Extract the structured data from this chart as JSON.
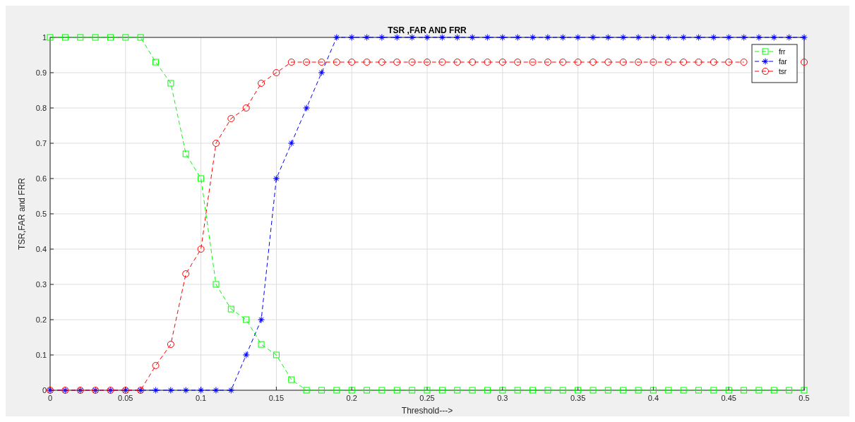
{
  "chart_data": {
    "type": "line",
    "title": "TSR ,FAR AND FRR",
    "xlabel": "Threshold--->",
    "ylabel": "TSR,FAR and FRR",
    "x": [
      0,
      0.01,
      0.02,
      0.03,
      0.04,
      0.05,
      0.06,
      0.07,
      0.08,
      0.09,
      0.1,
      0.11,
      0.12,
      0.13,
      0.14,
      0.15,
      0.16,
      0.17,
      0.18,
      0.19,
      0.2,
      0.21,
      0.22,
      0.23,
      0.24,
      0.25,
      0.26,
      0.27,
      0.28,
      0.29,
      0.3,
      0.31,
      0.32,
      0.33,
      0.34,
      0.35,
      0.36,
      0.37,
      0.38,
      0.39,
      0.4,
      0.41,
      0.42,
      0.43,
      0.44,
      0.45,
      0.46,
      0.47,
      0.48,
      0.49,
      0.5
    ],
    "series": [
      {
        "name": "frr",
        "color": "#00ff00",
        "marker": "square",
        "values": [
          1,
          1,
          1,
          1,
          1,
          1,
          1,
          0.93,
          0.87,
          0.67,
          0.6,
          0.3,
          0.23,
          0.2,
          0.13,
          0.1,
          0.03,
          0,
          0,
          0,
          0,
          0,
          0,
          0,
          0,
          0,
          0,
          0,
          0,
          0,
          0,
          0,
          0,
          0,
          0,
          0,
          0,
          0,
          0,
          0,
          0,
          0,
          0,
          0,
          0,
          0,
          0,
          0,
          0,
          0,
          0
        ]
      },
      {
        "name": "far",
        "color": "#0000ff",
        "marker": "star",
        "values": [
          0,
          0,
          0,
          0,
          0,
          0,
          0,
          0,
          0,
          0,
          0,
          0,
          0,
          0.1,
          0.2,
          0.6,
          0.7,
          0.8,
          0.9,
          1,
          1,
          1,
          1,
          1,
          1,
          1,
          1,
          1,
          1,
          1,
          1,
          1,
          1,
          1,
          1,
          1,
          1,
          1,
          1,
          1,
          1,
          1,
          1,
          1,
          1,
          1,
          1,
          1,
          1,
          1,
          1
        ]
      },
      {
        "name": "tsr",
        "color": "#ff0000",
        "marker": "circle",
        "values": [
          0,
          0,
          0,
          0,
          0,
          0,
          0,
          0.07,
          0.13,
          0.33,
          0.4,
          0.7,
          0.77,
          0.8,
          0.87,
          0.9,
          0.93,
          0.93,
          0.93,
          0.93,
          0.93,
          0.93,
          0.93,
          0.93,
          0.93,
          0.93,
          0.93,
          0.93,
          0.93,
          0.93,
          0.93,
          0.93,
          0.93,
          0.93,
          0.93,
          0.93,
          0.93,
          0.93,
          0.93,
          0.93,
          0.93,
          0.93,
          0.93,
          0.93,
          0.93,
          0.93,
          0.93,
          null,
          null,
          null,
          0.93
        ]
      }
    ],
    "xlim": [
      0,
      0.5
    ],
    "xticks": [
      0,
      0.05,
      0.1,
      0.15,
      0.2,
      0.25,
      0.3,
      0.35,
      0.4,
      0.45,
      0.5
    ],
    "ylim": [
      0,
      1
    ],
    "yticks": [
      0,
      0.1,
      0.2,
      0.3,
      0.4,
      0.5,
      0.6,
      0.7,
      0.8,
      0.9,
      1
    ],
    "grid": true,
    "legend": "top right",
    "line_style": "dashed"
  }
}
